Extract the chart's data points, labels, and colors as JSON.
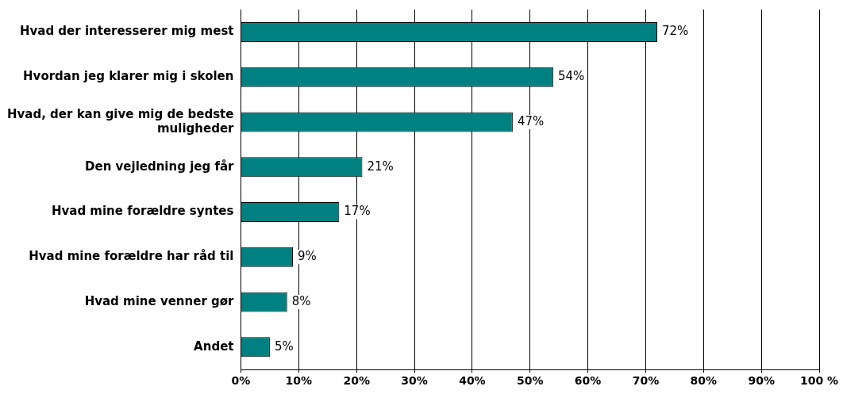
{
  "chart_data": {
    "type": "bar",
    "orientation": "horizontal",
    "categories": [
      "Hvad der interesserer mig mest",
      "Hvordan jeg klarer mig i skolen",
      "Hvad, der kan give mig de bedste muligheder",
      "Den vejledning jeg får",
      "Hvad mine forældre syntes",
      "Hvad mine forældre har råd til",
      "Hvad mine venner gør",
      "Andet"
    ],
    "values": [
      72,
      54,
      47,
      21,
      17,
      9,
      8,
      5
    ],
    "value_labels": [
      "72%",
      "54%",
      "47%",
      "21%",
      "17%",
      "9%",
      "8%",
      "5%"
    ],
    "color": "#008080",
    "xlim": [
      0,
      100
    ],
    "xticks": [
      {
        "value": 0,
        "label": "0%"
      },
      {
        "value": 10,
        "label": "10%"
      },
      {
        "value": 20,
        "label": "20%"
      },
      {
        "value": 30,
        "label": "30%"
      },
      {
        "value": 40,
        "label": "40%"
      },
      {
        "value": 50,
        "label": "50%"
      },
      {
        "value": 60,
        "label": "60%"
      },
      {
        "value": 70,
        "label": "70%"
      },
      {
        "value": 80,
        "label": "80%"
      },
      {
        "value": 90,
        "label": "90%"
      },
      {
        "value": 100,
        "label": "100 %"
      }
    ],
    "grid": "x",
    "legend": false
  }
}
